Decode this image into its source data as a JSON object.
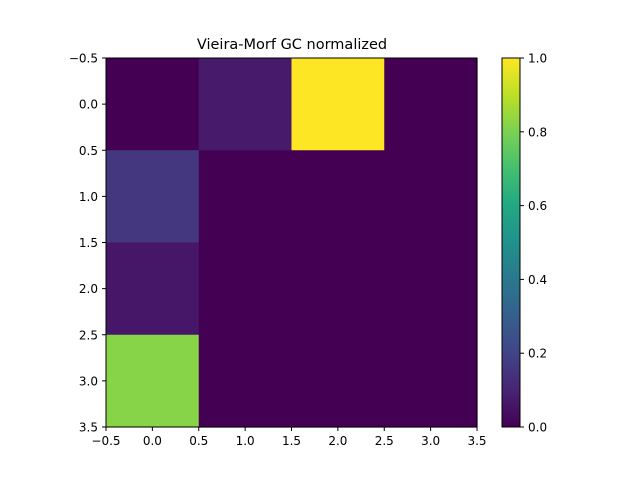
{
  "chart_data": {
    "type": "heatmap",
    "title": "Vieira-Morf GC normalized",
    "xlabel": "",
    "ylabel": "",
    "xlim": [
      -0.5,
      3.5
    ],
    "ylim": [
      3.5,
      -0.5
    ],
    "x_ticks": [
      "−0.5",
      "0.0",
      "0.5",
      "1.0",
      "1.5",
      "2.0",
      "2.5",
      "3.0",
      "3.5"
    ],
    "y_ticks": [
      "−0.5",
      "0.0",
      "0.5",
      "1.0",
      "1.5",
      "2.0",
      "2.5",
      "3.0",
      "3.5"
    ],
    "x_tick_values": [
      -0.5,
      0,
      0.5,
      1,
      1.5,
      2,
      2.5,
      3,
      3.5
    ],
    "y_tick_values": [
      -0.5,
      0,
      0.5,
      1,
      1.5,
      2,
      2.5,
      3,
      3.5
    ],
    "colormap": "viridis",
    "colorbar": {
      "range": [
        0.0,
        1.0
      ],
      "ticks": [
        "0.0",
        "0.2",
        "0.4",
        "0.6",
        "0.8",
        "1.0"
      ],
      "tick_values": [
        0,
        0.2,
        0.4,
        0.6,
        0.8,
        1.0
      ]
    },
    "values": [
      [
        0.0,
        0.07,
        1.0,
        0.0
      ],
      [
        0.16,
        0.0,
        0.0,
        0.0
      ],
      [
        0.06,
        0.0,
        0.0,
        0.0
      ],
      [
        0.82,
        0.0,
        0.0,
        0.0
      ]
    ],
    "grid": false
  }
}
